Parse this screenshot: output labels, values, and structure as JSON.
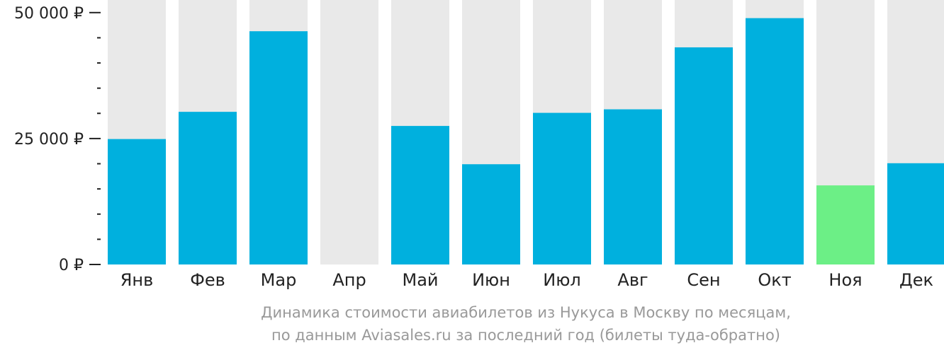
{
  "chart_data": {
    "type": "bar",
    "currency": "₽",
    "categories": [
      "Янв",
      "Фев",
      "Мар",
      "Апр",
      "Май",
      "Июн",
      "Июл",
      "Авг",
      "Сен",
      "Окт",
      "Ноя",
      "Дек"
    ],
    "values": [
      24900,
      30300,
      46300,
      null,
      27500,
      19900,
      30100,
      30800,
      43100,
      48900,
      15700,
      20100
    ],
    "ylim": [
      0,
      52500
    ],
    "yticks_major": [
      0,
      25000,
      50000
    ],
    "ytick_labels": [
      "0 ₽",
      "25 000 ₽",
      "50 000 ₽"
    ],
    "minor_tick_step": 5000,
    "lowest_index": 10,
    "colors": {
      "bar": "#00b0de",
      "lowest": "#6cef86",
      "background": "#e9e9e9",
      "axis": "#222222"
    }
  },
  "caption": {
    "line1": "Динамика стоимости авиабилетов из Нукуса в Москву по месяцам,",
    "line2": "по данным Aviasales.ru за последний год (билеты туда-обратно)"
  }
}
